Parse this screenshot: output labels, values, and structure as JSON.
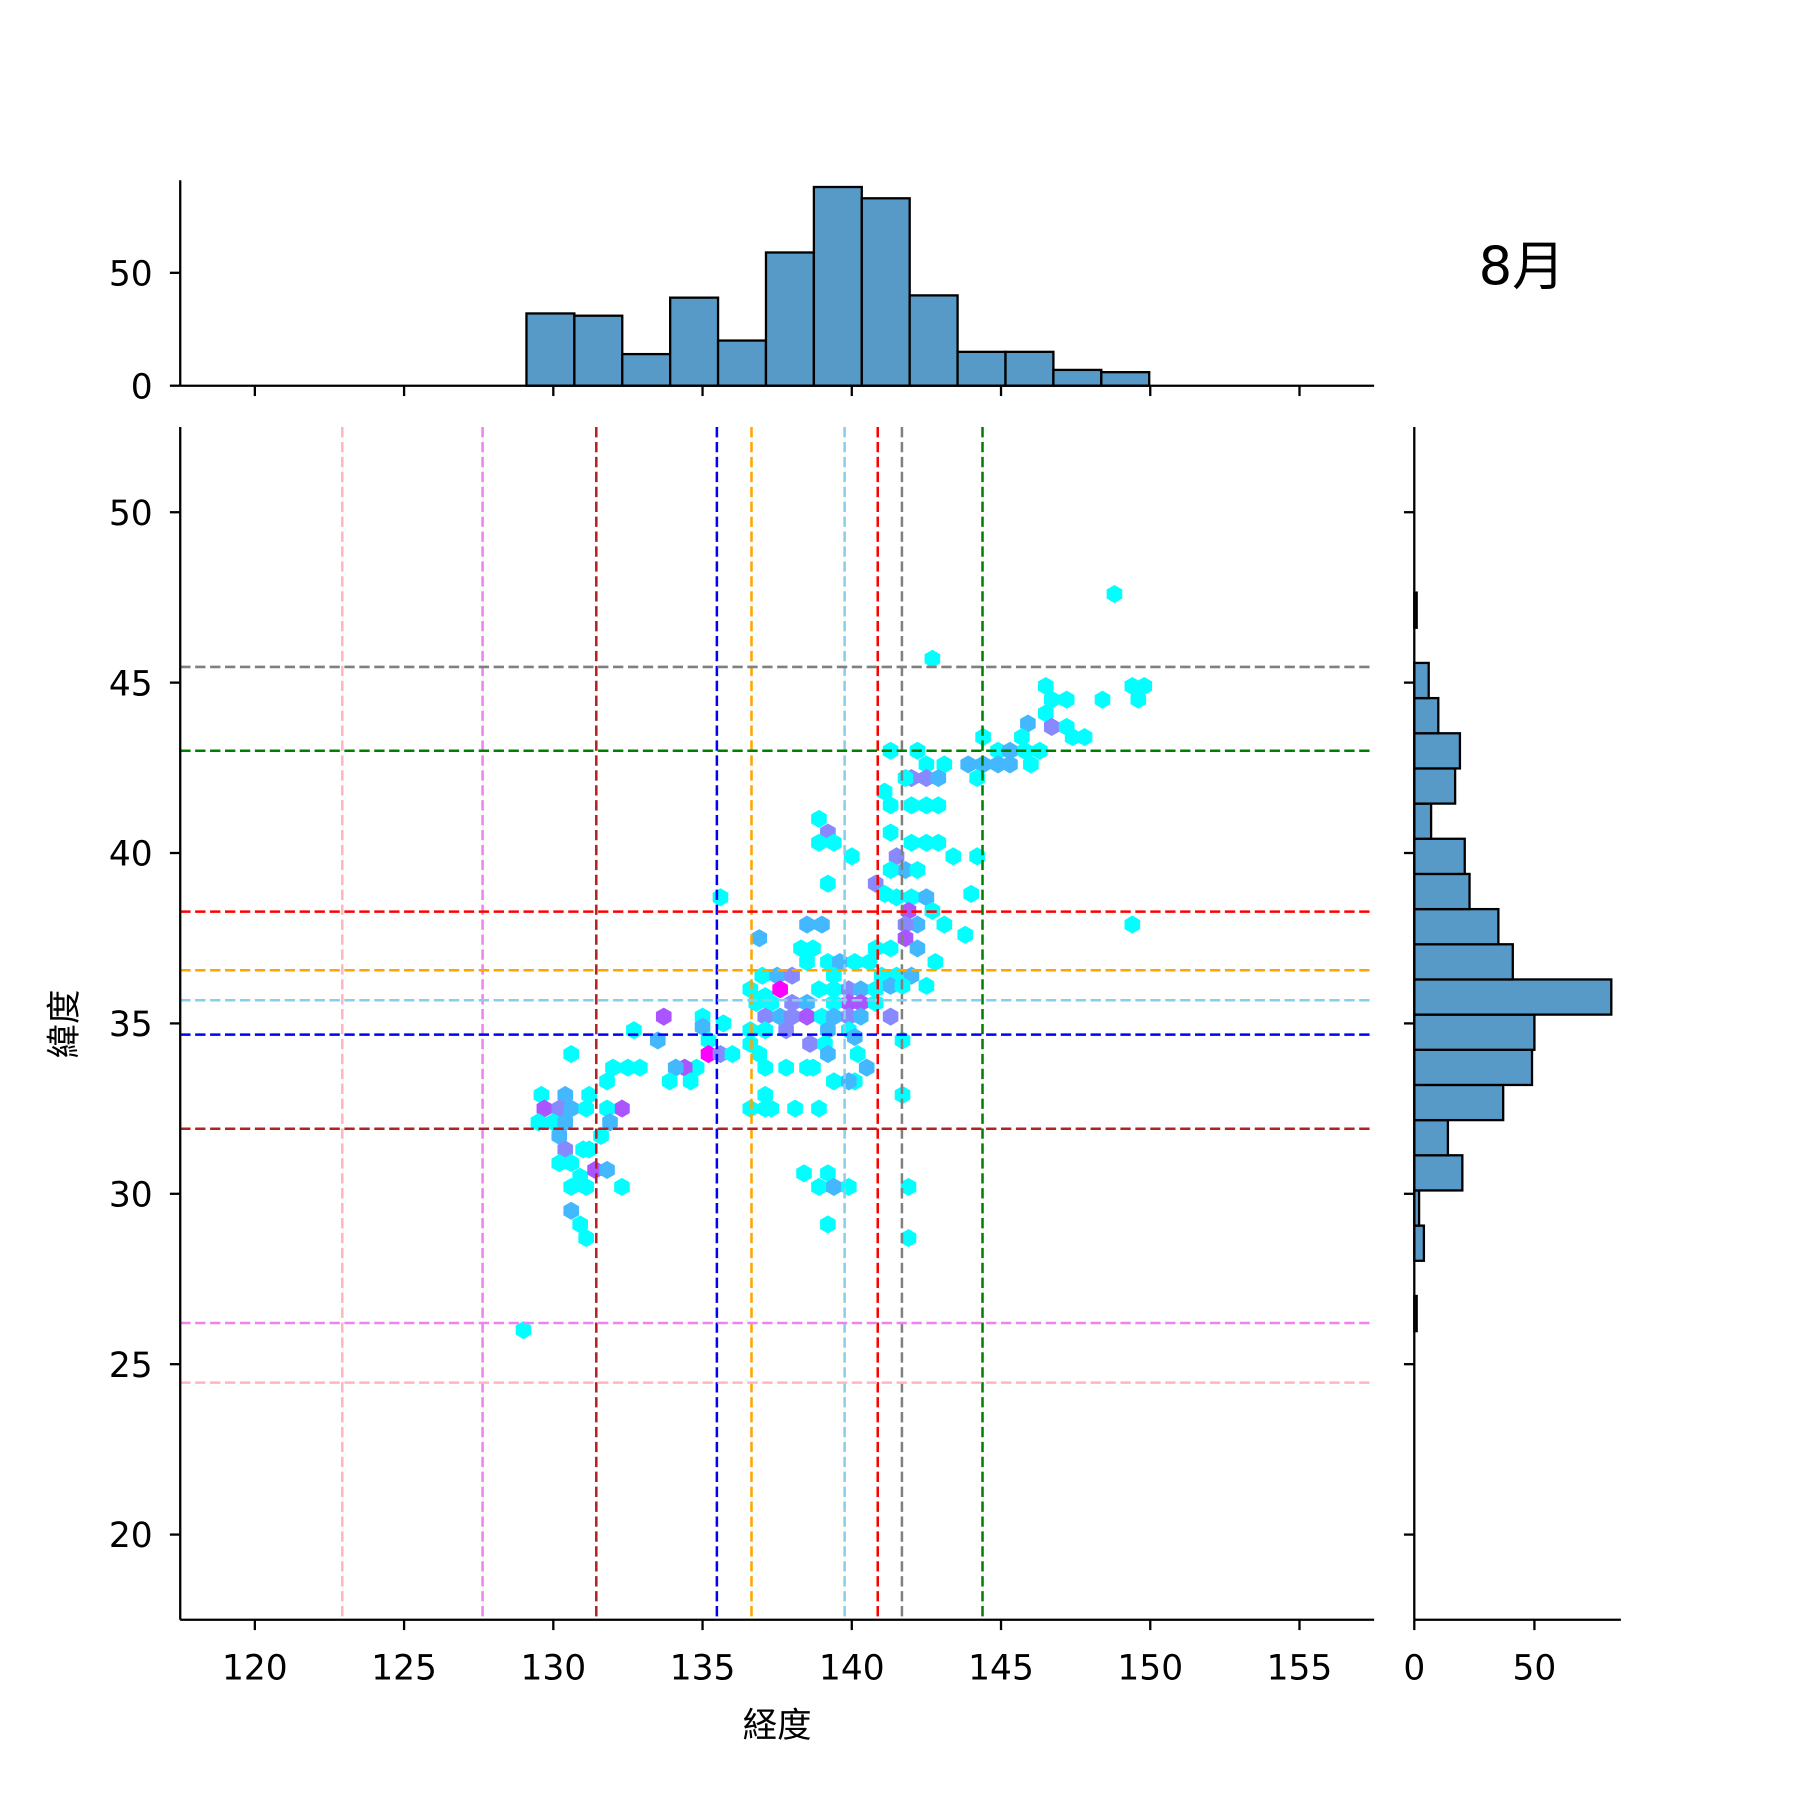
{
  "chart_data": {
    "type": "hexbin-jointplot",
    "title": "8月",
    "xlabel": "経度",
    "ylabel": "緯度",
    "xlim": [
      117.5,
      157.5
    ],
    "ylim": [
      17.5,
      52.5
    ],
    "xticks": [
      120,
      125,
      130,
      135,
      140,
      145,
      150,
      155
    ],
    "yticks": [
      20,
      25,
      30,
      35,
      40,
      45,
      50
    ],
    "colormap": {
      "1": "#00ffff",
      "2": "#44b8ff",
      "3": "#8888ff",
      "4": "#aa55ff",
      "5": "#ff00ff"
    },
    "vlines": [
      {
        "x": 122.93,
        "color": "#ffb6c1"
      },
      {
        "x": 127.63,
        "color": "#ee82ee"
      },
      {
        "x": 131.44,
        "color": "#b22222"
      },
      {
        "x": 135.48,
        "color": "#0000ff"
      },
      {
        "x": 136.64,
        "color": "#ffa500"
      },
      {
        "x": 139.76,
        "color": "#87ceeb"
      },
      {
        "x": 140.87,
        "color": "#ff0000"
      },
      {
        "x": 141.68,
        "color": "#808080"
      },
      {
        "x": 144.38,
        "color": "#008000"
      }
    ],
    "hlines": [
      {
        "y": 45.46,
        "color": "#808080"
      },
      {
        "y": 43.0,
        "color": "#008000"
      },
      {
        "y": 38.28,
        "color": "#ff0000"
      },
      {
        "y": 36.56,
        "color": "#ffa500"
      },
      {
        "y": 35.68,
        "color": "#87ceeb"
      },
      {
        "y": 34.67,
        "color": "#0000ff"
      },
      {
        "y": 31.91,
        "color": "#b22222"
      },
      {
        "y": 26.21,
        "color": "#ee82ee"
      },
      {
        "y": 24.46,
        "color": "#ffb6c1"
      }
    ],
    "hexbins": [
      [
        148.8,
        47.6,
        1
      ],
      [
        142.7,
        45.7,
        1
      ],
      [
        146.5,
        44.9,
        1
      ],
      [
        146.7,
        44.5,
        1
      ],
      [
        147.2,
        44.5,
        1
      ],
      [
        148.4,
        44.5,
        1
      ],
      [
        149.4,
        44.9,
        1
      ],
      [
        149.8,
        44.9,
        1
      ],
      [
        149.6,
        44.5,
        1
      ],
      [
        146.5,
        44.1,
        1
      ],
      [
        145.9,
        43.8,
        2
      ],
      [
        146.7,
        43.7,
        3
      ],
      [
        147.2,
        43.7,
        1
      ],
      [
        147.4,
        43.4,
        1
      ],
      [
        147.8,
        43.4,
        1
      ],
      [
        144.4,
        43.4,
        1
      ],
      [
        144.9,
        43.0,
        1
      ],
      [
        145.3,
        43.0,
        2
      ],
      [
        145.8,
        43.0,
        1
      ],
      [
        146.3,
        43.0,
        1
      ],
      [
        145.7,
        43.4,
        1
      ],
      [
        146.0,
        42.6,
        1
      ],
      [
        143.9,
        42.6,
        2
      ],
      [
        144.4,
        42.6,
        2
      ],
      [
        144.9,
        42.6,
        2
      ],
      [
        145.3,
        42.6,
        2
      ],
      [
        144.2,
        42.2,
        1
      ],
      [
        141.3,
        43.0,
        1
      ],
      [
        142.2,
        43.0,
        1
      ],
      [
        142.5,
        42.6,
        1
      ],
      [
        143.1,
        42.6,
        1
      ],
      [
        142.0,
        42.2,
        3
      ],
      [
        142.5,
        42.2,
        3
      ],
      [
        142.9,
        42.2,
        2
      ],
      [
        141.8,
        42.2,
        1
      ],
      [
        141.1,
        41.8,
        1
      ],
      [
        141.3,
        41.4,
        1
      ],
      [
        142.0,
        41.4,
        1
      ],
      [
        142.5,
        41.4,
        1
      ],
      [
        142.9,
        41.4,
        1
      ],
      [
        138.9,
        41.0,
        1
      ],
      [
        139.2,
        40.6,
        3
      ],
      [
        138.9,
        40.3,
        1
      ],
      [
        139.4,
        40.3,
        1
      ],
      [
        141.3,
        40.6,
        1
      ],
      [
        140.0,
        39.9,
        1
      ],
      [
        142.0,
        40.3,
        1
      ],
      [
        142.5,
        40.3,
        1
      ],
      [
        142.9,
        40.3,
        1
      ],
      [
        143.4,
        39.9,
        1
      ],
      [
        144.2,
        39.9,
        1
      ],
      [
        141.5,
        39.9,
        3
      ],
      [
        141.8,
        39.5,
        2
      ],
      [
        142.2,
        39.5,
        1
      ],
      [
        141.3,
        39.5,
        1
      ],
      [
        140.8,
        39.1,
        3
      ],
      [
        139.2,
        39.1,
        1
      ],
      [
        141.1,
        38.8,
        1
      ],
      [
        141.5,
        38.7,
        1
      ],
      [
        142.0,
        38.7,
        1
      ],
      [
        142.5,
        38.7,
        2
      ],
      [
        144.0,
        38.8,
        1
      ],
      [
        135.6,
        38.7,
        1
      ],
      [
        141.9,
        38.3,
        4
      ],
      [
        142.2,
        37.9,
        2
      ],
      [
        141.8,
        37.9,
        3
      ],
      [
        142.7,
        38.3,
        1
      ],
      [
        143.1,
        37.9,
        1
      ],
      [
        143.8,
        37.6,
        1
      ],
      [
        138.5,
        37.9,
        2
      ],
      [
        139.0,
        37.9,
        2
      ],
      [
        136.9,
        37.5,
        2
      ],
      [
        149.4,
        37.9,
        1
      ],
      [
        141.8,
        37.5,
        4
      ],
      [
        142.2,
        37.2,
        2
      ],
      [
        141.3,
        37.2,
        1
      ],
      [
        140.8,
        37.2,
        1
      ],
      [
        140.6,
        36.8,
        1
      ],
      [
        142.8,
        36.8,
        1
      ],
      [
        138.3,
        37.2,
        1
      ],
      [
        138.7,
        37.2,
        1
      ],
      [
        138.5,
        36.8,
        1
      ],
      [
        139.2,
        36.8,
        1
      ],
      [
        139.6,
        36.8,
        2
      ],
      [
        140.1,
        36.8,
        1
      ],
      [
        137.0,
        36.4,
        1
      ],
      [
        137.5,
        36.4,
        2
      ],
      [
        138.0,
        36.4,
        3
      ],
      [
        139.4,
        36.4,
        1
      ],
      [
        141.5,
        36.4,
        1
      ],
      [
        142.0,
        36.4,
        2
      ],
      [
        141.0,
        36.4,
        1
      ],
      [
        136.6,
        36.0,
        1
      ],
      [
        137.1,
        35.8,
        1
      ],
      [
        137.6,
        36.0,
        5
      ],
      [
        138.9,
        36.0,
        1
      ],
      [
        139.4,
        36.0,
        1
      ],
      [
        139.9,
        36.0,
        3
      ],
      [
        140.3,
        36.0,
        2
      ],
      [
        140.8,
        36.0,
        1
      ],
      [
        141.3,
        36.1,
        2
      ],
      [
        141.7,
        36.1,
        1
      ],
      [
        142.5,
        36.1,
        1
      ],
      [
        136.8,
        35.6,
        1
      ],
      [
        137.3,
        35.6,
        1
      ],
      [
        138.0,
        35.6,
        3
      ],
      [
        138.5,
        35.6,
        2
      ],
      [
        139.9,
        35.6,
        4
      ],
      [
        140.3,
        35.6,
        4
      ],
      [
        140.8,
        35.6,
        1
      ],
      [
        139.4,
        35.6,
        1
      ],
      [
        137.1,
        35.2,
        3
      ],
      [
        137.6,
        35.2,
        2
      ],
      [
        138.0,
        35.2,
        3
      ],
      [
        138.5,
        35.2,
        4
      ],
      [
        139.0,
        35.2,
        1
      ],
      [
        139.4,
        35.2,
        2
      ],
      [
        139.9,
        35.2,
        3
      ],
      [
        140.3,
        35.2,
        2
      ],
      [
        141.3,
        35.2,
        3
      ],
      [
        136.6,
        34.8,
        1
      ],
      [
        137.1,
        34.8,
        1
      ],
      [
        137.8,
        34.8,
        3
      ],
      [
        139.2,
        34.8,
        2
      ],
      [
        139.9,
        34.8,
        1
      ],
      [
        140.1,
        34.6,
        2
      ],
      [
        135.7,
        35.0,
        1
      ],
      [
        135.0,
        35.2,
        1
      ],
      [
        135.0,
        34.9,
        2
      ],
      [
        133.7,
        35.2,
        4
      ],
      [
        132.7,
        34.8,
        1
      ],
      [
        133.5,
        34.5,
        2
      ],
      [
        135.2,
        34.5,
        1
      ],
      [
        136.6,
        34.4,
        1
      ],
      [
        136.9,
        34.1,
        1
      ],
      [
        138.6,
        34.4,
        3
      ],
      [
        139.1,
        34.4,
        1
      ],
      [
        139.2,
        34.1,
        2
      ],
      [
        140.2,
        34.1,
        1
      ],
      [
        141.7,
        34.5,
        1
      ],
      [
        135.2,
        34.1,
        5
      ],
      [
        135.6,
        34.1,
        3
      ],
      [
        134.8,
        33.7,
        1
      ],
      [
        134.4,
        33.7,
        4
      ],
      [
        134.1,
        33.7,
        2
      ],
      [
        134.6,
        33.3,
        1
      ],
      [
        133.9,
        33.3,
        1
      ],
      [
        136.0,
        34.1,
        1
      ],
      [
        137.1,
        33.7,
        1
      ],
      [
        137.8,
        33.7,
        1
      ],
      [
        138.5,
        33.7,
        1
      ],
      [
        138.7,
        33.7,
        1
      ],
      [
        139.4,
        33.3,
        1
      ],
      [
        140.1,
        33.3,
        1
      ],
      [
        139.9,
        33.3,
        2
      ],
      [
        140.5,
        33.7,
        2
      ],
      [
        132.0,
        33.7,
        1
      ],
      [
        132.5,
        33.7,
        1
      ],
      [
        132.9,
        33.7,
        1
      ],
      [
        131.8,
        33.3,
        1
      ],
      [
        130.6,
        34.1,
        1
      ],
      [
        129.6,
        32.9,
        1
      ],
      [
        130.4,
        32.9,
        2
      ],
      [
        131.2,
        32.9,
        1
      ],
      [
        129.7,
        32.5,
        4
      ],
      [
        130.2,
        32.5,
        3
      ],
      [
        130.6,
        32.5,
        2
      ],
      [
        131.1,
        32.5,
        1
      ],
      [
        132.3,
        32.5,
        4
      ],
      [
        131.8,
        32.5,
        1
      ],
      [
        129.5,
        32.1,
        1
      ],
      [
        130.0,
        32.1,
        1
      ],
      [
        130.4,
        32.1,
        2
      ],
      [
        131.9,
        32.1,
        2
      ],
      [
        131.6,
        31.7,
        1
      ],
      [
        130.2,
        31.7,
        2
      ],
      [
        130.4,
        31.3,
        3
      ],
      [
        131.0,
        31.3,
        1
      ],
      [
        131.2,
        31.3,
        1
      ],
      [
        130.2,
        30.9,
        1
      ],
      [
        130.6,
        30.9,
        1
      ],
      [
        130.9,
        30.5,
        1
      ],
      [
        131.4,
        30.7,
        4
      ],
      [
        131.8,
        30.7,
        2
      ],
      [
        130.6,
        30.2,
        1
      ],
      [
        131.1,
        30.2,
        1
      ],
      [
        132.3,
        30.2,
        1
      ],
      [
        130.6,
        29.5,
        2
      ],
      [
        130.9,
        29.1,
        1
      ],
      [
        131.1,
        28.7,
        1
      ],
      [
        129.0,
        26.0,
        1
      ],
      [
        138.4,
        30.6,
        1
      ],
      [
        139.2,
        30.6,
        1
      ],
      [
        138.9,
        30.2,
        1
      ],
      [
        139.4,
        30.2,
        2
      ],
      [
        139.9,
        30.2,
        1
      ],
      [
        141.9,
        30.2,
        1
      ],
      [
        139.2,
        29.1,
        1
      ],
      [
        141.9,
        28.7,
        1
      ],
      [
        141.7,
        32.9,
        1
      ],
      [
        136.6,
        32.5,
        1
      ],
      [
        137.1,
        32.5,
        1
      ],
      [
        137.3,
        32.5,
        1
      ],
      [
        137.1,
        32.9,
        1
      ],
      [
        138.1,
        32.5,
        1
      ],
      [
        138.9,
        32.5,
        1
      ]
    ],
    "top_hist": {
      "bin_start": 129.1,
      "bin_width": 1.605,
      "counts": [
        32,
        31,
        14,
        39,
        20,
        59,
        88,
        83,
        40,
        15,
        15,
        7,
        6
      ],
      "yticks": [
        0,
        50
      ],
      "ylim": [
        0,
        91
      ],
      "color": "#5799c7"
    },
    "right_hist": {
      "bin_start": 25.97,
      "bin_width": 1.032,
      "counts": [
        1,
        0,
        4,
        2,
        20,
        14,
        37,
        49,
        50,
        82,
        41,
        35,
        23,
        21,
        7,
        17,
        19,
        10,
        6,
        0,
        1
      ],
      "xticks": [
        0,
        50
      ],
      "xlim": [
        0,
        86
      ],
      "color": "#5799c7"
    }
  }
}
